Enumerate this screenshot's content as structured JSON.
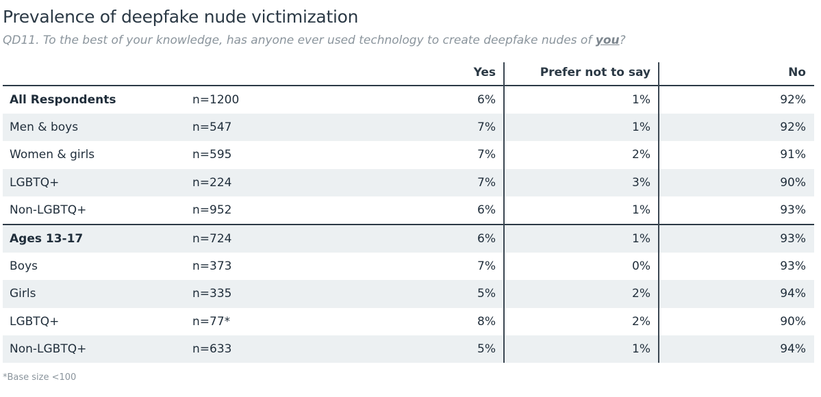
{
  "title": "Prevalence of deepfake nude victimization",
  "subtitle": {
    "prefix": "QD11. To the best of your knowledge, has anyone ever used technology to create deepfake nudes of ",
    "emphasis": "you",
    "suffix": "?"
  },
  "footnote": "*Base size <100",
  "colors": {
    "text": "#1f2d3a",
    "muted": "#8a949c",
    "row_shade": "#ecf0f2",
    "rule": "#2b3945"
  },
  "chart_data": {
    "type": "table",
    "columns": [
      "Yes",
      "Prefer not to say",
      "No"
    ],
    "rows": [
      {
        "label": "All Respondents",
        "n": "n=1200",
        "values": [
          "6%",
          "1%",
          "92%"
        ],
        "bold": true
      },
      {
        "label": "Men & boys",
        "n": "n=547",
        "values": [
          "7%",
          "1%",
          "92%"
        ]
      },
      {
        "label": "Women & girls",
        "n": "n=595",
        "values": [
          "7%",
          "2%",
          "91%"
        ]
      },
      {
        "label": "LGBTQ+",
        "n": "n=224",
        "values": [
          "7%",
          "3%",
          "90%"
        ]
      },
      {
        "label": "Non-LGBTQ+",
        "n": "n=952",
        "values": [
          "6%",
          "1%",
          "93%"
        ]
      },
      {
        "label": "Ages 13-17",
        "n": "n=724",
        "values": [
          "6%",
          "1%",
          "93%"
        ],
        "bold": true,
        "section_start": true
      },
      {
        "label": "Boys",
        "n": "n=373",
        "values": [
          "7%",
          "0%",
          "93%"
        ]
      },
      {
        "label": "Girls",
        "n": "n=335",
        "values": [
          "5%",
          "2%",
          "94%"
        ]
      },
      {
        "label": "LGBTQ+",
        "n": "n=77*",
        "values": [
          "8%",
          "2%",
          "90%"
        ]
      },
      {
        "label": "Non-LGBTQ+",
        "n": "n=633",
        "values": [
          "5%",
          "1%",
          "94%"
        ]
      }
    ]
  }
}
